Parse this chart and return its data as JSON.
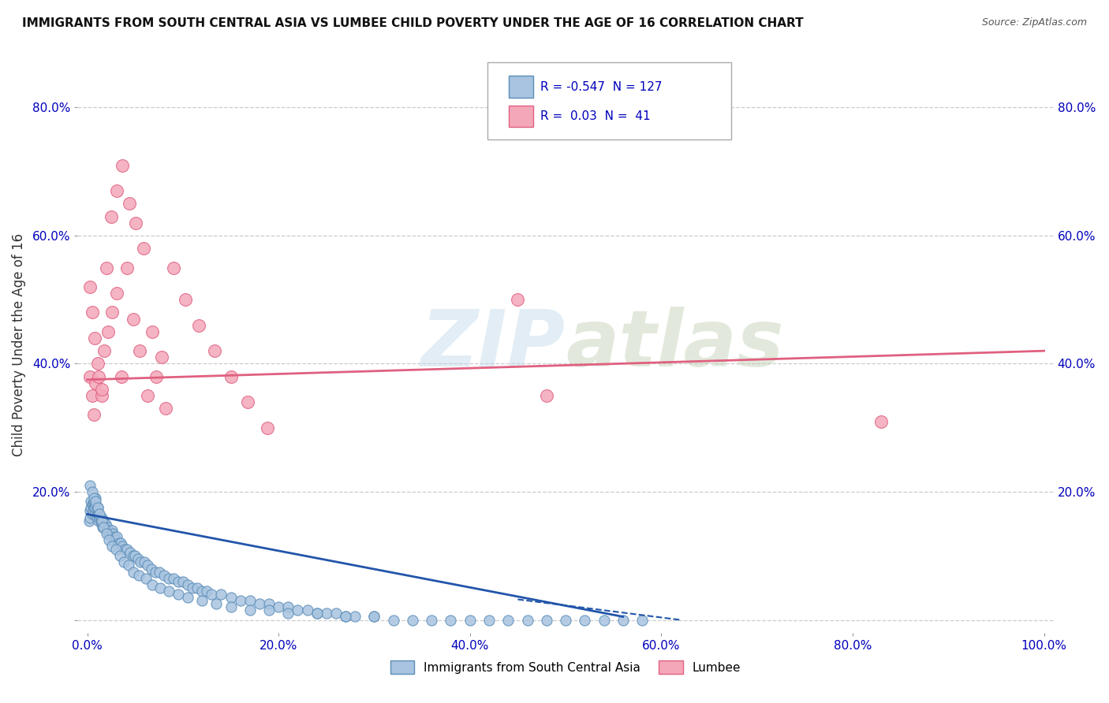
{
  "title": "IMMIGRANTS FROM SOUTH CENTRAL ASIA VS LUMBEE CHILD POVERTY UNDER THE AGE OF 16 CORRELATION CHART",
  "source": "Source: ZipAtlas.com",
  "ylabel": "Child Poverty Under the Age of 16",
  "watermark": "ZIPatlas",
  "legend_labels": [
    "Immigrants from South Central Asia",
    "Lumbee"
  ],
  "blue_R": -0.547,
  "blue_N": 127,
  "pink_R": 0.03,
  "pink_N": 41,
  "xlim": [
    -0.01,
    1.01
  ],
  "ylim": [
    -0.02,
    0.88
  ],
  "xticks": [
    0.0,
    0.2,
    0.4,
    0.6,
    0.8,
    1.0
  ],
  "yticks": [
    0.0,
    0.2,
    0.4,
    0.6,
    0.8
  ],
  "xticklabels": [
    "0.0%",
    "20.0%",
    "40.0%",
    "60.0%",
    "80.0%",
    "100.0%"
  ],
  "yticklabels": [
    "",
    "20.0%",
    "40.0%",
    "60.0%",
    "80.0%"
  ],
  "background_color": "#ffffff",
  "grid_color": "#cccccc",
  "blue_dot_face": "#a8c4e0",
  "blue_dot_edge": "#5b8db8",
  "pink_dot_face": "#f4a7b9",
  "pink_dot_edge": "#e06080",
  "blue_line_color": "#2255aa",
  "pink_line_color": "#e06080",
  "title_color": "#111111",
  "tick_color": "#0000bb",
  "source_color": "#555555",
  "ylabel_color": "#333333",
  "blue_scatter_x": [
    0.002,
    0.003,
    0.003,
    0.004,
    0.004,
    0.005,
    0.005,
    0.006,
    0.006,
    0.007,
    0.007,
    0.008,
    0.008,
    0.009,
    0.009,
    0.01,
    0.01,
    0.011,
    0.011,
    0.012,
    0.012,
    0.013,
    0.014,
    0.015,
    0.015,
    0.016,
    0.017,
    0.018,
    0.019,
    0.02,
    0.021,
    0.022,
    0.023,
    0.025,
    0.026,
    0.027,
    0.028,
    0.03,
    0.031,
    0.033,
    0.035,
    0.037,
    0.039,
    0.042,
    0.045,
    0.048,
    0.05,
    0.053,
    0.056,
    0.06,
    0.063,
    0.067,
    0.071,
    0.075,
    0.08,
    0.085,
    0.09,
    0.095,
    0.1,
    0.105,
    0.11,
    0.115,
    0.12,
    0.125,
    0.13,
    0.14,
    0.15,
    0.16,
    0.17,
    0.18,
    0.19,
    0.2,
    0.21,
    0.22,
    0.23,
    0.24,
    0.25,
    0.26,
    0.27,
    0.28,
    0.3,
    0.32,
    0.34,
    0.36,
    0.38,
    0.4,
    0.42,
    0.44,
    0.46,
    0.48,
    0.5,
    0.52,
    0.54,
    0.56,
    0.58,
    0.003,
    0.005,
    0.007,
    0.009,
    0.011,
    0.013,
    0.015,
    0.017,
    0.02,
    0.023,
    0.026,
    0.03,
    0.034,
    0.038,
    0.043,
    0.048,
    0.054,
    0.061,
    0.068,
    0.076,
    0.085,
    0.095,
    0.105,
    0.12,
    0.135,
    0.15,
    0.17,
    0.19,
    0.21,
    0.24,
    0.27,
    0.3
  ],
  "blue_scatter_y": [
    0.155,
    0.17,
    0.16,
    0.175,
    0.185,
    0.165,
    0.18,
    0.17,
    0.18,
    0.175,
    0.185,
    0.165,
    0.175,
    0.18,
    0.19,
    0.16,
    0.17,
    0.165,
    0.175,
    0.155,
    0.165,
    0.16,
    0.155,
    0.15,
    0.16,
    0.145,
    0.155,
    0.145,
    0.15,
    0.14,
    0.145,
    0.14,
    0.135,
    0.13,
    0.14,
    0.135,
    0.13,
    0.125,
    0.13,
    0.12,
    0.12,
    0.115,
    0.11,
    0.11,
    0.105,
    0.1,
    0.1,
    0.095,
    0.09,
    0.09,
    0.085,
    0.08,
    0.075,
    0.075,
    0.07,
    0.065,
    0.065,
    0.06,
    0.06,
    0.055,
    0.05,
    0.05,
    0.045,
    0.045,
    0.04,
    0.04,
    0.035,
    0.03,
    0.03,
    0.025,
    0.025,
    0.02,
    0.02,
    0.015,
    0.015,
    0.01,
    0.01,
    0.01,
    0.005,
    0.005,
    0.005,
    0.0,
    0.0,
    0.0,
    0.0,
    0.0,
    0.0,
    0.0,
    0.0,
    0.0,
    0.0,
    0.0,
    0.0,
    0.0,
    0.0,
    0.21,
    0.2,
    0.19,
    0.185,
    0.175,
    0.165,
    0.155,
    0.145,
    0.135,
    0.125,
    0.115,
    0.11,
    0.1,
    0.09,
    0.085,
    0.075,
    0.07,
    0.065,
    0.055,
    0.05,
    0.045,
    0.04,
    0.035,
    0.03,
    0.025,
    0.02,
    0.015,
    0.015,
    0.01,
    0.01,
    0.005,
    0.005
  ],
  "pink_scatter_x": [
    0.003,
    0.005,
    0.007,
    0.009,
    0.012,
    0.015,
    0.018,
    0.022,
    0.026,
    0.031,
    0.036,
    0.042,
    0.048,
    0.055,
    0.063,
    0.072,
    0.082,
    0.003,
    0.005,
    0.008,
    0.011,
    0.015,
    0.02,
    0.025,
    0.031,
    0.037,
    0.044,
    0.051,
    0.059,
    0.068,
    0.078,
    0.09,
    0.103,
    0.117,
    0.133,
    0.15,
    0.168,
    0.188,
    0.45,
    0.48,
    0.83
  ],
  "pink_scatter_y": [
    0.38,
    0.35,
    0.32,
    0.37,
    0.38,
    0.35,
    0.42,
    0.45,
    0.48,
    0.51,
    0.38,
    0.55,
    0.47,
    0.42,
    0.35,
    0.38,
    0.33,
    0.52,
    0.48,
    0.44,
    0.4,
    0.36,
    0.55,
    0.63,
    0.67,
    0.71,
    0.65,
    0.62,
    0.58,
    0.45,
    0.41,
    0.55,
    0.5,
    0.46,
    0.42,
    0.38,
    0.34,
    0.3,
    0.5,
    0.35,
    0.31
  ],
  "blue_trend_x0": 0.0,
  "blue_trend_x1": 0.56,
  "blue_trend_y0": 0.165,
  "blue_trend_y1": 0.005,
  "blue_trend_dash_x0": 0.45,
  "blue_trend_dash_x1": 0.62,
  "blue_trend_dash_y0": 0.032,
  "blue_trend_dash_y1": 0.0,
  "pink_trend_x0": 0.0,
  "pink_trend_x1": 1.0,
  "pink_trend_y0": 0.375,
  "pink_trend_y1": 0.42
}
